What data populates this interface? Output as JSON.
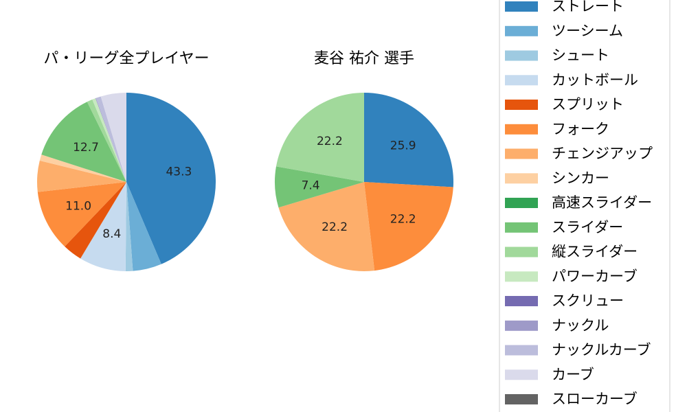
{
  "chart_data": [
    {
      "type": "pie",
      "title": "パ・リーグ全プレイヤー",
      "slices": [
        {
          "label": "ストレート",
          "value": 43.3,
          "color": "#3182bd",
          "data_label": "43.3"
        },
        {
          "label": "ツーシーム",
          "value": 5.2,
          "color": "#6baed6",
          "data_label": ""
        },
        {
          "label": "シュート",
          "value": 1.3,
          "color": "#9ecae1",
          "data_label": ""
        },
        {
          "label": "カットボール",
          "value": 8.4,
          "color": "#c6dbef",
          "data_label": "8.4"
        },
        {
          "label": "スプリット",
          "value": 3.5,
          "color": "#e6550d",
          "data_label": ""
        },
        {
          "label": "フォーク",
          "value": 11.0,
          "color": "#fd8d3c",
          "data_label": "11.0"
        },
        {
          "label": "チェンジアップ",
          "value": 5.6,
          "color": "#fdae6b",
          "data_label": ""
        },
        {
          "label": "シンカー",
          "value": 1.1,
          "color": "#fdd0a2",
          "data_label": ""
        },
        {
          "label": "高速スライダー",
          "value": 0.0,
          "color": "#31a354",
          "data_label": ""
        },
        {
          "label": "スライダー",
          "value": 12.7,
          "color": "#74c476",
          "data_label": "12.7"
        },
        {
          "label": "縦スライダー",
          "value": 1.0,
          "color": "#a1d99b",
          "data_label": ""
        },
        {
          "label": "パワーカーブ",
          "value": 0.6,
          "color": "#c7e9c0",
          "data_label": ""
        },
        {
          "label": "スクリュー",
          "value": 0.0,
          "color": "#756bb1",
          "data_label": ""
        },
        {
          "label": "ナックル",
          "value": 0.1,
          "color": "#9e9ac8",
          "data_label": ""
        },
        {
          "label": "ナックルカーブ",
          "value": 0.9,
          "color": "#bcbddc",
          "data_label": ""
        },
        {
          "label": "カーブ",
          "value": 4.6,
          "color": "#dadaeb",
          "data_label": ""
        },
        {
          "label": "スローカーブ",
          "value": 0.0,
          "color": "#636363",
          "data_label": ""
        }
      ]
    },
    {
      "type": "pie",
      "title": "麦谷 祐介  選手",
      "slices": [
        {
          "label": "ストレート",
          "value": 25.9,
          "color": "#3182bd",
          "data_label": "25.9"
        },
        {
          "label": "フォーク",
          "value": 22.2,
          "color": "#fd8d3c",
          "data_label": "22.2"
        },
        {
          "label": "チェンジアップ",
          "value": 22.2,
          "color": "#fdae6b",
          "data_label": "22.2"
        },
        {
          "label": "スライダー",
          "value": 7.4,
          "color": "#74c476",
          "data_label": "7.4"
        },
        {
          "label": "縦スライダー",
          "value": 22.2,
          "color": "#a1d99b",
          "data_label": "22.2"
        }
      ]
    }
  ],
  "legend": {
    "placement": "right",
    "entries": [
      {
        "label": "ストレート",
        "color": "#3182bd"
      },
      {
        "label": "ツーシーム",
        "color": "#6baed6"
      },
      {
        "label": "シュート",
        "color": "#9ecae1"
      },
      {
        "label": "カットボール",
        "color": "#c6dbef"
      },
      {
        "label": "スプリット",
        "color": "#e6550d"
      },
      {
        "label": "フォーク",
        "color": "#fd8d3c"
      },
      {
        "label": "チェンジアップ",
        "color": "#fdae6b"
      },
      {
        "label": "シンカー",
        "color": "#fdd0a2"
      },
      {
        "label": "高速スライダー",
        "color": "#31a354"
      },
      {
        "label": "スライダー",
        "color": "#74c476"
      },
      {
        "label": "縦スライダー",
        "color": "#a1d99b"
      },
      {
        "label": "パワーカーブ",
        "color": "#c7e9c0"
      },
      {
        "label": "スクリュー",
        "color": "#756bb1"
      },
      {
        "label": "ナックル",
        "color": "#9e9ac8"
      },
      {
        "label": "ナックルカーブ",
        "color": "#bcbddc"
      },
      {
        "label": "カーブ",
        "color": "#dadaeb"
      },
      {
        "label": "スローカーブ",
        "color": "#636363"
      }
    ]
  }
}
